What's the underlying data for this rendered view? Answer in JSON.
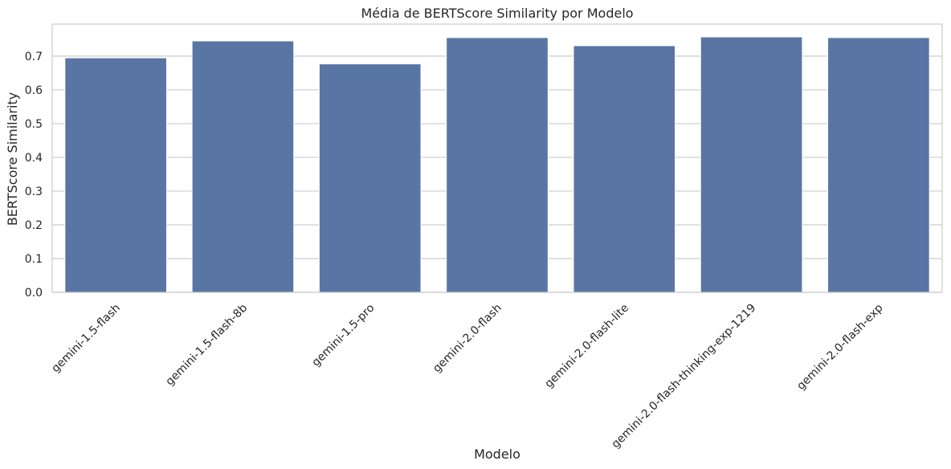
{
  "chart_data": {
    "type": "bar",
    "title": "Média de BERTScore Similarity por Modelo",
    "xlabel": "Modelo",
    "ylabel": "BERTScore Similarity",
    "categories": [
      "gemini-1.5-flash",
      "gemini-1.5-flash-8b",
      "gemini-1.5-pro",
      "gemini-2.0-flash",
      "gemini-2.0-flash-lite",
      "gemini-2.0-flash-thinking-exp-1219",
      "gemini-2.0-flash-exp"
    ],
    "values": [
      0.695,
      0.745,
      0.677,
      0.755,
      0.731,
      0.757,
      0.755
    ],
    "ylim": [
      0,
      0.795
    ],
    "yticks": [
      "0.0",
      "0.1",
      "0.2",
      "0.3",
      "0.4",
      "0.5",
      "0.6",
      "0.7"
    ],
    "grid": "horizontal",
    "colors": {
      "bar": "#5975a4",
      "grid": "#cccccc",
      "frame": "#cccccc",
      "text": "#262626"
    }
  }
}
